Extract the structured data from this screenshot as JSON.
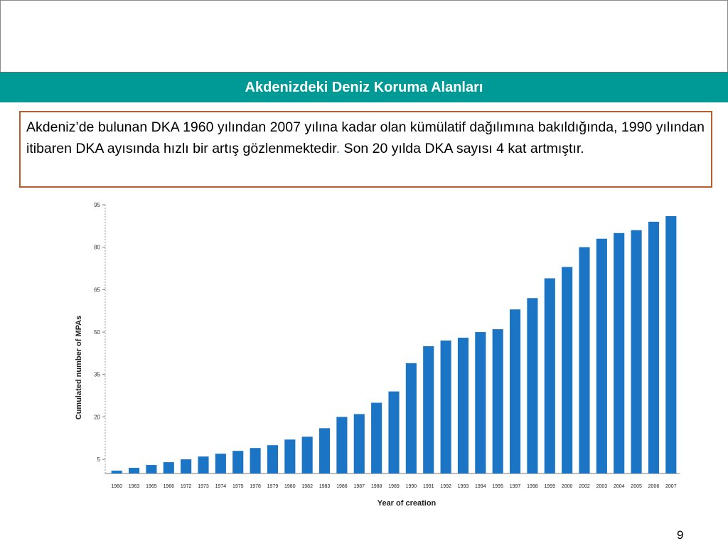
{
  "slide": {
    "title": "Akdenizdeki Deniz Koruma Alanları",
    "body_text_main": "Akdeniz’de bulunan DKA 1960 yılından 2007 yılına kadar olan kümülatif dağılımına bakıldığında, 1990 yılından itibaren DKA ayısında hızlı bir artış gözlenmektedir",
    "body_text_dot": ".",
    "body_text_tail": " Son 20 yılda DKA sayısı 4 kat artmıştır.",
    "page_number": "9"
  },
  "chart_data": {
    "type": "bar",
    "xlabel": "Year of creation",
    "ylabel": "Cumulated number of MPAs",
    "ylim": [
      0,
      95
    ],
    "yticks": [
      5,
      20,
      35,
      50,
      65,
      80,
      95
    ],
    "categories": [
      "1960",
      "1963",
      "1965",
      "1966",
      "1972",
      "1973",
      "1974",
      "1975",
      "1978",
      "1979",
      "1980",
      "1982",
      "1983",
      "1986",
      "1987",
      "1988",
      "1989",
      "1990",
      "1991",
      "1992",
      "1993",
      "1994",
      "1995",
      "1997",
      "1998",
      "1999",
      "2000",
      "2002",
      "2003",
      "2004",
      "2005",
      "2006",
      "2007"
    ],
    "values": [
      1,
      2,
      3,
      4,
      5,
      6,
      7,
      8,
      9,
      10,
      12,
      13,
      16,
      20,
      21,
      25,
      29,
      39,
      45,
      47,
      48,
      50,
      51,
      58,
      62,
      69,
      73,
      80,
      83,
      85,
      86,
      89,
      91
    ],
    "bar_color": "#1b75c4",
    "grid": false
  }
}
